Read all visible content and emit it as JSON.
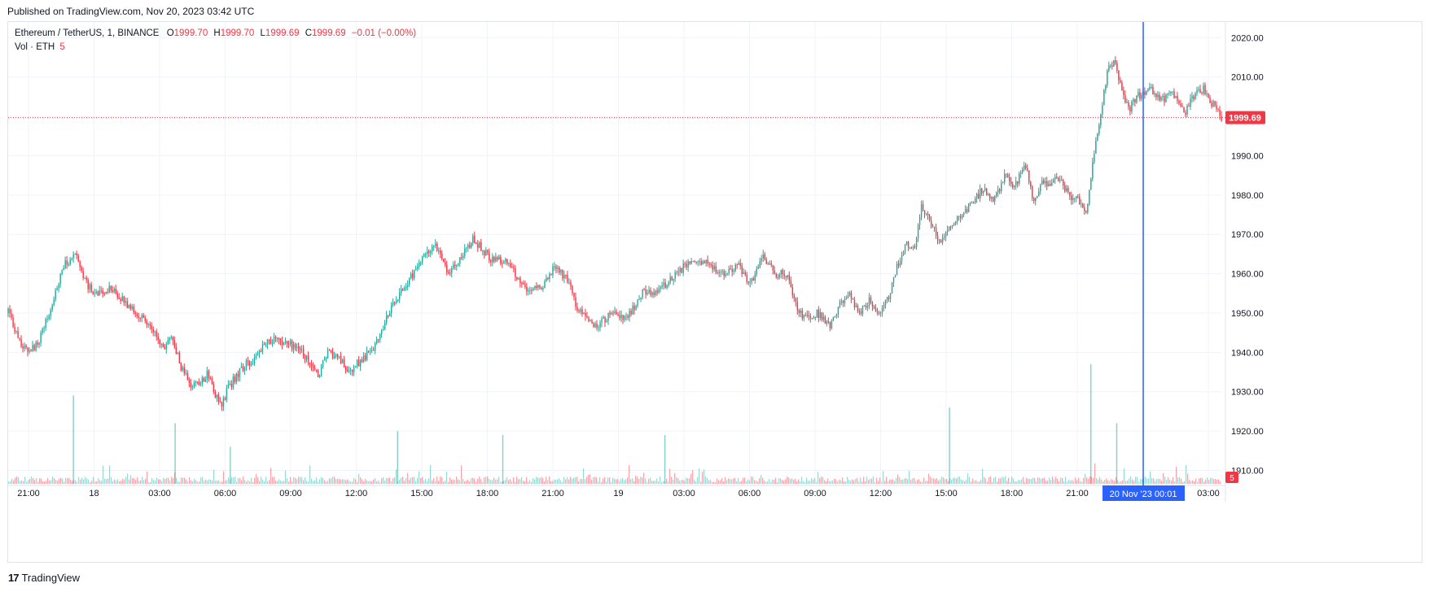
{
  "header": {
    "published": "Published on TradingView.com, Nov 20, 2023 03:42 UTC"
  },
  "legend": {
    "symbol": "Ethereum / TetherUS, 1, BINANCE",
    "open_label": "O",
    "open": "1999.70",
    "high_label": "H",
    "high": "1999.70",
    "low_label": "L",
    "low": "1999.69",
    "close_label": "C",
    "close": "1999.69",
    "change": "−0.01 (−0.00%)"
  },
  "vol_legend": {
    "label": "Vol · ETH",
    "value": "5"
  },
  "footer": {
    "logo_mark": "17",
    "brand": "TradingView"
  },
  "colors": {
    "up": "#26a69a",
    "down": "#f23645",
    "crosshair": "#2962ff",
    "grid": "#f0f3fa"
  },
  "chart_data": {
    "type": "candlestick",
    "symbol": "Ethereum / TetherUS",
    "interval": "1",
    "exchange": "BINANCE",
    "last_price": 1999.69,
    "last_volume_label": "5",
    "ylim": [
      1907,
      2024
    ],
    "y_ticks": [
      "2020.00",
      "2010.00",
      "2000.00",
      "1990.00",
      "1980.00",
      "1970.00",
      "1960.00",
      "1950.00",
      "1940.00",
      "1930.00",
      "1920.00",
      "1910.00"
    ],
    "x_ticks": [
      "21:00",
      "18",
      "03:00",
      "06:00",
      "09:00",
      "12:00",
      "15:00",
      "18:00",
      "21:00",
      "19",
      "03:00",
      "06:00",
      "09:00",
      "12:00",
      "15:00",
      "18:00",
      "21:00",
      "20 Nov '23",
      "03:00"
    ],
    "x_tick_hours": [
      0,
      3,
      6,
      9,
      12,
      15,
      18,
      21,
      24,
      27,
      30,
      33,
      36,
      39,
      42,
      45,
      48,
      51,
      54
    ],
    "crosshair_label": "20 Nov '23   00:01",
    "crosshair_hour": 51.02,
    "x_start_hour": -0.95,
    "x_end_hour": 55.55,
    "price_path": [
      [
        -0.95,
        1950
      ],
      [
        -0.5,
        1945
      ],
      [
        0,
        1941
      ],
      [
        0.6,
        1941
      ],
      [
        1.2,
        1947
      ],
      [
        1.7,
        1954
      ],
      [
        2.3,
        1962
      ],
      [
        2.9,
        1965
      ],
      [
        3.5,
        1958
      ],
      [
        4,
        1955
      ],
      [
        5,
        1956
      ],
      [
        6,
        1952
      ],
      [
        6.5,
        1950
      ],
      [
        7.2,
        1947
      ],
      [
        8,
        1941
      ],
      [
        8.6,
        1944
      ],
      [
        9,
        1937
      ],
      [
        9.6,
        1932
      ],
      [
        10.2,
        1932
      ],
      [
        10.6,
        1935
      ],
      [
        11,
        1930
      ],
      [
        11.4,
        1926
      ],
      [
        11.8,
        1931
      ],
      [
        12.3,
        1934
      ],
      [
        12.8,
        1937
      ],
      [
        13.3,
        1938
      ],
      [
        14,
        1943
      ],
      [
        15,
        1943
      ],
      [
        15.8,
        1941
      ],
      [
        16.5,
        1938
      ],
      [
        17,
        1934
      ],
      [
        17.6,
        1940
      ],
      [
        18.2,
        1939
      ],
      [
        18.8,
        1935
      ],
      [
        19.5,
        1938
      ],
      [
        20.3,
        1941
      ],
      [
        21,
        1949
      ],
      [
        21.8,
        1955
      ],
      [
        22.5,
        1960
      ],
      [
        23.5,
        1966
      ],
      [
        24,
        1967
      ],
      [
        24.5,
        1960
      ],
      [
        25,
        1962
      ],
      [
        26,
        1969
      ],
      [
        27,
        1964
      ],
      [
        28,
        1963
      ],
      [
        28.7,
        1958
      ],
      [
        29.2,
        1955
      ],
      [
        30,
        1957
      ],
      [
        30.8,
        1962
      ],
      [
        31.5,
        1958
      ],
      [
        32,
        1952
      ],
      [
        33,
        1946
      ],
      [
        34,
        1950
      ],
      [
        35,
        1949
      ],
      [
        35.8,
        1955
      ],
      [
        36.5,
        1955
      ],
      [
        37.3,
        1958
      ],
      [
        38.3,
        1962
      ],
      [
        39.3,
        1963
      ],
      [
        40.5,
        1960
      ],
      [
        41.4,
        1962
      ],
      [
        42,
        1957
      ],
      [
        42.8,
        1964
      ],
      [
        43.6,
        1960
      ],
      [
        44.2,
        1960
      ],
      [
        44.7,
        1952
      ],
      [
        45.2,
        1949
      ],
      [
        46,
        1950
      ],
      [
        46.7,
        1947
      ],
      [
        47.3,
        1952
      ],
      [
        47.8,
        1955
      ],
      [
        48.4,
        1950
      ],
      [
        49,
        1953
      ],
      [
        49.5,
        1950
      ],
      [
        50.1,
        1954
      ],
      [
        50.6,
        1962
      ],
      [
        51.1,
        1968
      ],
      [
        51.6,
        1966
      ],
      [
        52,
        1977
      ],
      [
        52.5,
        1973
      ],
      [
        53.1,
        1968
      ],
      [
        53.7,
        1972
      ],
      [
        54.3,
        1975
      ],
      [
        55,
        1978
      ],
      [
        55.6,
        1982
      ],
      [
        56.2,
        1978
      ],
      [
        56.8,
        1985
      ],
      [
        57.4,
        1982
      ],
      [
        58,
        1988
      ],
      [
        58.5,
        1979
      ],
      [
        59,
        1983
      ],
      [
        59.5,
        1982
      ],
      [
        60,
        1985
      ],
      [
        60.6,
        1979
      ],
      [
        61.1,
        1979
      ],
      [
        61.6,
        1976
      ],
      [
        62,
        1990
      ],
      [
        62.4,
        2000
      ],
      [
        62.8,
        2012
      ],
      [
        63.3,
        2014
      ],
      [
        63.6,
        2006
      ],
      [
        64.1,
        2002
      ],
      [
        64.5,
        2005
      ],
      [
        65.2,
        2007
      ],
      [
        65.9,
        2004
      ],
      [
        66.6,
        2006
      ],
      [
        67.3,
        2001
      ],
      [
        67.9,
        2006
      ],
      [
        68.4,
        2007
      ],
      [
        68.9,
        2003
      ],
      [
        69.4,
        1999.69
      ]
    ],
    "volume_spikes": [
      [
        2.8,
        1929
      ],
      [
        8.7,
        1922
      ],
      [
        11.9,
        1916
      ],
      [
        21.6,
        1920
      ],
      [
        27.7,
        1919
      ],
      [
        37.1,
        1919
      ],
      [
        53.6,
        1926
      ],
      [
        61.8,
        1937
      ],
      [
        63.3,
        1922
      ]
    ],
    "note_time": "hours relative to Nov 17 21:00 UTC; path beyond 51 shown compressed onto the visible axis"
  }
}
